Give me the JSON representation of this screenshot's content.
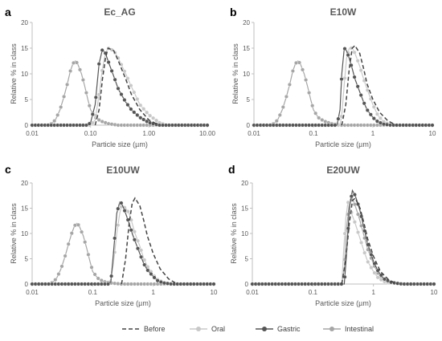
{
  "figure": {
    "legend": [
      {
        "name": "Before",
        "style": "dashed",
        "color": "#444444",
        "marker": "none"
      },
      {
        "name": "Oral",
        "style": "solid",
        "color": "#c8c8c8",
        "marker": "circle"
      },
      {
        "name": "Gastric",
        "style": "solid",
        "color": "#555555",
        "marker": "circle"
      },
      {
        "name": "Intestinal",
        "style": "solid",
        "color": "#a6a6a6",
        "marker": "circle"
      }
    ]
  },
  "chart_data": [
    {
      "type": "line",
      "panel_letter": "a",
      "title": "Ec_AG",
      "xlabel": "Particle size (µm)",
      "ylabel": "Relative % in class",
      "xscale": "log",
      "xlim": [
        0.01,
        10
      ],
      "ylim": [
        0,
        20
      ],
      "xticks": [
        "0.01",
        "0.10",
        "1.00",
        "10.00"
      ],
      "yticks": [
        "0",
        "5",
        "10",
        "15",
        "20"
      ],
      "series": [
        {
          "name": "Before",
          "x": [
            0.12,
            0.14,
            0.16,
            0.18,
            0.2,
            0.25,
            0.3,
            0.4,
            0.5,
            0.7,
            1.0,
            1.5
          ],
          "values": [
            0,
            3,
            9,
            13,
            15,
            14.5,
            12.5,
            9,
            6,
            3,
            1,
            0
          ]
        },
        {
          "name": "Oral",
          "x": [
            0.01,
            0.1,
            0.12,
            0.14,
            0.16,
            0.18,
            0.2,
            0.25,
            0.3,
            0.4,
            0.5,
            0.7,
            1.0,
            1.5,
            2,
            10
          ],
          "values": [
            0,
            0,
            1,
            6,
            11,
            14,
            15,
            14.5,
            13,
            10,
            7.5,
            4,
            2,
            0.5,
            0,
            0
          ]
        },
        {
          "name": "Gastric",
          "x": [
            0.01,
            0.09,
            0.1,
            0.12,
            0.14,
            0.16,
            0.18,
            0.2,
            0.25,
            0.3,
            0.4,
            0.5,
            0.7,
            1.0,
            1.5,
            2,
            10
          ],
          "values": [
            0,
            0,
            0.5,
            4,
            12,
            14.8,
            14,
            12.5,
            9.5,
            7,
            4.5,
            3,
            1.5,
            0.5,
            0,
            0,
            0
          ]
        },
        {
          "name": "Intestinal",
          "x": [
            0.01,
            0.02,
            0.025,
            0.03,
            0.035,
            0.04,
            0.045,
            0.05,
            0.055,
            0.06,
            0.07,
            0.08,
            0.09,
            0.1,
            0.12,
            0.15,
            0.2,
            0.3,
            0.5,
            10
          ],
          "values": [
            0,
            0,
            1,
            3,
            5.5,
            8,
            10.5,
            12,
            12.5,
            12,
            10,
            7.5,
            5,
            3,
            1.5,
            0.8,
            0.3,
            0,
            0,
            0
          ]
        }
      ]
    },
    {
      "type": "line",
      "panel_letter": "b",
      "title": "E10W",
      "xlabel": "Particle size (µm)",
      "ylabel": "Relative % in class",
      "xscale": "log",
      "xlim": [
        0.01,
        10
      ],
      "ylim": [
        0,
        20
      ],
      "xticks": [
        "0.01",
        "0.1",
        "1",
        "10"
      ],
      "yticks": [
        "0",
        "5",
        "10",
        "15",
        "20"
      ],
      "series": [
        {
          "name": "Before",
          "x": [
            0.3,
            0.35,
            0.4,
            0.45,
            0.5,
            0.6,
            0.7,
            0.8,
            1.0,
            1.3,
            1.8,
            2.5
          ],
          "values": [
            0,
            4,
            11,
            15,
            15.5,
            14,
            11,
            8,
            5,
            2.5,
            0.8,
            0
          ]
        },
        {
          "name": "Oral",
          "x": [
            0.01,
            0.28,
            0.3,
            0.33,
            0.36,
            0.4,
            0.45,
            0.5,
            0.6,
            0.7,
            0.8,
            1.0,
            1.2,
            1.5,
            2,
            10
          ],
          "values": [
            0,
            0,
            2,
            8,
            13,
            15,
            15,
            14,
            11.5,
            9,
            7,
            4,
            2,
            0.7,
            0,
            0
          ]
        },
        {
          "name": "Gastric",
          "x": [
            0.01,
            0.25,
            0.28,
            0.3,
            0.33,
            0.36,
            0.4,
            0.45,
            0.5,
            0.6,
            0.7,
            0.8,
            1.0,
            1.2,
            1.5,
            2,
            10
          ],
          "values": [
            0,
            0,
            3,
            10,
            15,
            14.5,
            13,
            11,
            9,
            6.5,
            4.5,
            3,
            1.5,
            0.7,
            0.2,
            0,
            0
          ]
        },
        {
          "name": "Intestinal",
          "x": [
            0.01,
            0.02,
            0.025,
            0.03,
            0.035,
            0.04,
            0.045,
            0.05,
            0.055,
            0.06,
            0.07,
            0.08,
            0.09,
            0.1,
            0.12,
            0.15,
            0.2,
            0.3,
            0.5,
            10
          ],
          "values": [
            0,
            0,
            1,
            3,
            5.5,
            8,
            10.5,
            12,
            12.5,
            12,
            10,
            7.5,
            5,
            3,
            1.5,
            0.8,
            0.3,
            0,
            0,
            0
          ]
        }
      ]
    },
    {
      "type": "line",
      "panel_letter": "c",
      "title": "E10UW",
      "xlabel": "Particle size (µm)",
      "ylabel": "Relative % in class",
      "xscale": "log",
      "xlim": [
        0.01,
        10
      ],
      "ylim": [
        0,
        20
      ],
      "xticks": [
        "0.01",
        "0.1",
        "1",
        "10"
      ],
      "yticks": [
        "0",
        "5",
        "10",
        "15",
        "20"
      ],
      "series": [
        {
          "name": "Before",
          "x": [
            0.3,
            0.35,
            0.4,
            0.45,
            0.5,
            0.6,
            0.7,
            0.8,
            1.0,
            1.3,
            1.8,
            2.5
          ],
          "values": [
            0,
            5,
            12,
            16,
            17,
            15.5,
            12.5,
            9.5,
            6,
            3,
            1,
            0
          ]
        },
        {
          "name": "Oral",
          "x": [
            0.01,
            0.18,
            0.2,
            0.22,
            0.25,
            0.28,
            0.3,
            0.35,
            0.4,
            0.45,
            0.5,
            0.6,
            0.7,
            0.8,
            1.0,
            1.2,
            1.5,
            2,
            10
          ],
          "values": [
            0,
            0,
            1,
            4,
            10,
            14,
            15.5,
            15,
            14,
            12,
            10,
            7.5,
            5,
            3.5,
            1.8,
            0.8,
            0.3,
            0,
            0
          ]
        },
        {
          "name": "Gastric",
          "x": [
            0.01,
            0.18,
            0.2,
            0.22,
            0.25,
            0.28,
            0.3,
            0.35,
            0.4,
            0.45,
            0.5,
            0.6,
            0.7,
            0.8,
            1.0,
            1.2,
            1.5,
            2,
            10
          ],
          "values": [
            0,
            0,
            0.5,
            6,
            14,
            16.2,
            16,
            14,
            12,
            10,
            8.5,
            6,
            4,
            2.8,
            1.5,
            0.6,
            0.2,
            0,
            0
          ]
        },
        {
          "name": "Intestinal",
          "x": [
            0.01,
            0.02,
            0.025,
            0.03,
            0.035,
            0.04,
            0.045,
            0.05,
            0.055,
            0.06,
            0.07,
            0.08,
            0.09,
            0.1,
            0.12,
            0.15,
            0.2,
            0.3,
            0.5,
            10
          ],
          "values": [
            0,
            0,
            1,
            3,
            5.5,
            8,
            10,
            11.5,
            12,
            11.5,
            9.5,
            7,
            4.5,
            2.5,
            1.2,
            0.5,
            0.2,
            0,
            0,
            0
          ]
        }
      ]
    },
    {
      "type": "line",
      "panel_letter": "d",
      "title": "E20UW",
      "xlabel": "Particle size (µm)",
      "ylabel": "Relative % in class",
      "xscale": "log",
      "xlim": [
        0.01,
        10
      ],
      "ylim": [
        0,
        20
      ],
      "xticks": [
        "0.01",
        "0.1",
        "1",
        "10"
      ],
      "yticks": [
        "0",
        "5",
        "10",
        "15",
        "20"
      ],
      "series": [
        {
          "name": "Before",
          "x": [
            0.3,
            0.35,
            0.4,
            0.45,
            0.5,
            0.6,
            0.7,
            0.8,
            1.0,
            1.3,
            1.8,
            2.5
          ],
          "values": [
            0,
            5,
            12,
            16.5,
            17,
            15,
            12,
            9,
            5.5,
            2.5,
            0.8,
            0
          ]
        },
        {
          "name": "Oral",
          "x": [
            0.01,
            0.3,
            0.32,
            0.35,
            0.38,
            0.4,
            0.45,
            0.5,
            0.6,
            0.7,
            0.8,
            1.0,
            1.2,
            1.5,
            2,
            3,
            10
          ],
          "values": [
            0,
            0,
            6,
            13,
            16.2,
            15.5,
            13.5,
            12,
            9,
            6.5,
            4.5,
            2.5,
            1.2,
            0.5,
            0.2,
            0,
            0
          ]
        },
        {
          "name": "Gastric",
          "x": [
            0.01,
            0.33,
            0.36,
            0.4,
            0.45,
            0.5,
            0.55,
            0.6,
            0.7,
            0.8,
            1.0,
            1.2,
            1.5,
            2,
            3,
            10
          ],
          "values": [
            0,
            0,
            6,
            15,
            18.5,
            17.5,
            16,
            14.5,
            11,
            8,
            4.5,
            2.5,
            1,
            0.3,
            0,
            0
          ]
        },
        {
          "name": "Intestinal",
          "x": [
            0.01,
            0.3,
            0.33,
            0.36,
            0.4,
            0.45,
            0.5,
            0.55,
            0.6,
            0.7,
            0.8,
            1.0,
            1.2,
            1.5,
            2,
            3,
            10
          ],
          "values": [
            0,
            0,
            3,
            11,
            16,
            17,
            15.5,
            14,
            12.5,
            9.5,
            7,
            4,
            2,
            0.8,
            0.3,
            0,
            0
          ]
        }
      ]
    }
  ]
}
